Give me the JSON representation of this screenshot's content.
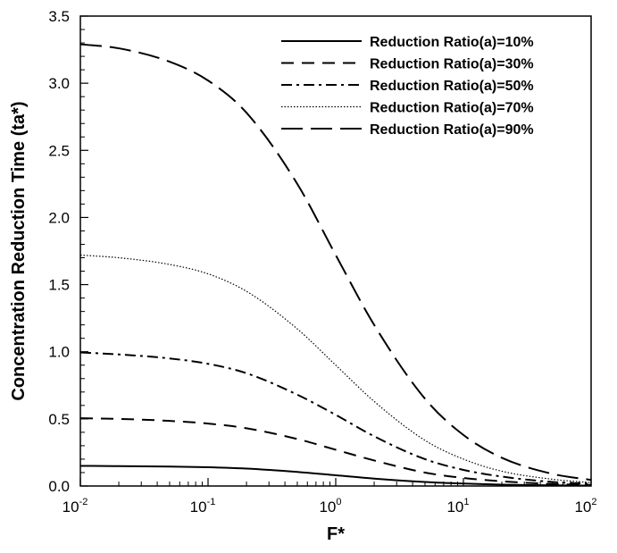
{
  "chart_data": {
    "type": "line",
    "title": "",
    "xlabel": "F*",
    "ylabel": "Concentration Reduction Time (ta*)",
    "xscale": "log",
    "xlim": [
      0.01,
      100
    ],
    "ylim": [
      0,
      3.5
    ],
    "grid": false,
    "legend_position": "top-right",
    "x_ticks": [
      {
        "base": "10",
        "exp": "-2"
      },
      {
        "base": "10",
        "exp": "-1"
      },
      {
        "base": "10",
        "exp": "0"
      },
      {
        "base": "10",
        "exp": "1"
      },
      {
        "base": "10",
        "exp": "2"
      }
    ],
    "y_ticks": [
      "0.0",
      "0.5",
      "1.0",
      "1.5",
      "2.0",
      "2.5",
      "3.0",
      "3.5"
    ],
    "x": [
      0.01,
      0.02,
      0.05,
      0.1,
      0.2,
      0.5,
      1,
      2,
      5,
      10,
      20,
      50,
      100
    ],
    "series": [
      {
        "name": "Reduction Ratio(a)=10%",
        "dash": "solid",
        "values": [
          0.15,
          0.148,
          0.145,
          0.14,
          0.13,
          0.105,
          0.08,
          0.055,
          0.03,
          0.018,
          0.01,
          0.005,
          0.003
        ]
      },
      {
        "name": "Reduction Ratio(a)=30%",
        "dash": "dashed",
        "values": [
          0.505,
          0.5,
          0.485,
          0.465,
          0.43,
          0.35,
          0.27,
          0.19,
          0.1,
          0.06,
          0.035,
          0.015,
          0.008
        ]
      },
      {
        "name": "Reduction Ratio(a)=50%",
        "dash": "dashdot",
        "values": [
          0.995,
          0.98,
          0.95,
          0.91,
          0.84,
          0.68,
          0.53,
          0.37,
          0.2,
          0.12,
          0.07,
          0.03,
          0.015
        ]
      },
      {
        "name": "Reduction Ratio(a)=70%",
        "dash": "dotted",
        "values": [
          1.72,
          1.7,
          1.65,
          1.58,
          1.45,
          1.17,
          0.9,
          0.63,
          0.34,
          0.2,
          0.11,
          0.05,
          0.025
        ]
      },
      {
        "name": "Reduction Ratio(a)=90%",
        "dash": "longdash",
        "values": [
          3.29,
          3.26,
          3.16,
          3.02,
          2.78,
          2.25,
          1.72,
          1.2,
          0.65,
          0.38,
          0.21,
          0.09,
          0.045
        ]
      }
    ]
  }
}
